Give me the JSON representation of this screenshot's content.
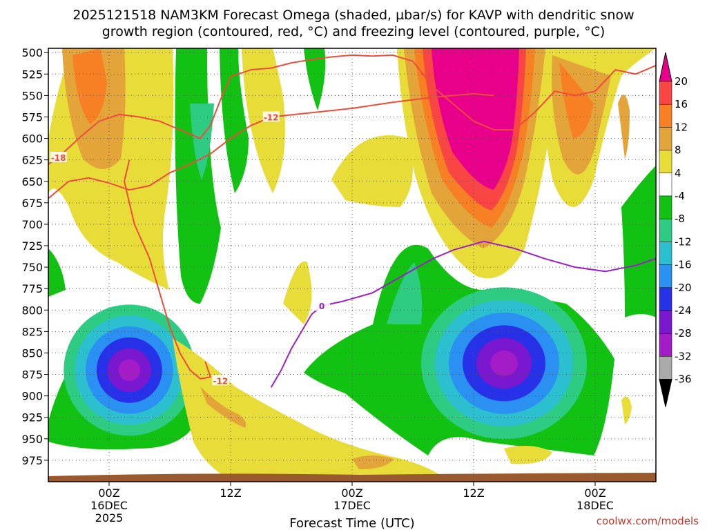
{
  "title_line1": "2025121518 NAM3KM Forecast Omega (shaded, µbar/s) for KAVP with dendritic snow",
  "title_line2": "growth region (contoured, red, °C) and freezing level (contoured, purple, °C)",
  "credit": "coolwx.com/models",
  "colors": {
    "frame": "#000000",
    "grid": "#aaaaaa",
    "ground": "#9b5a2e",
    "dgz": "#f04a3c",
    "freezing": "#9b1fc8"
  },
  "chart_data": {
    "type": "heatmap",
    "xlabel": "Forecast Time (UTC)",
    "x_ticks": [
      {
        "lines": [
          "00Z",
          "16DEC",
          "2025"
        ],
        "hours": 6
      },
      {
        "lines": [
          "12Z"
        ],
        "hours": 18
      },
      {
        "lines": [
          "00Z",
          "17DEC"
        ],
        "hours": 30
      },
      {
        "lines": [
          "12Z"
        ],
        "hours": 42
      },
      {
        "lines": [
          "00Z",
          "18DEC"
        ],
        "hours": 54
      }
    ],
    "xlim_hours": [
      0,
      60
    ],
    "y_ticks": [
      500,
      525,
      550,
      575,
      600,
      625,
      650,
      675,
      700,
      725,
      750,
      775,
      800,
      825,
      850,
      875,
      900,
      925,
      950,
      975
    ],
    "ylim": [
      1000,
      495
    ],
    "colorbar": {
      "labels": [
        "20",
        "16",
        "12",
        "8",
        "4",
        "-4",
        "-8",
        "-12",
        "-16",
        "-20",
        "-24",
        "-28",
        "-32",
        "-36"
      ],
      "bins": [
        {
          "color": "#e8008a"
        },
        {
          "color": "#fa4545"
        },
        {
          "color": "#f77f24"
        },
        {
          "color": "#e3a43a"
        },
        {
          "color": "#e8dd38"
        },
        {
          "color": "#ffffff"
        },
        {
          "color": "#12c212"
        },
        {
          "color": "#2ecc82"
        },
        {
          "color": "#2bbfcf"
        },
        {
          "color": "#2a90f2"
        },
        {
          "color": "#2631e8"
        },
        {
          "color": "#7a18d0"
        },
        {
          "color": "#a31cc8"
        },
        {
          "color": "#aaaaaa"
        },
        {
          "color": "#000000"
        }
      ]
    },
    "contours": [
      {
        "name": "dgz-minus-12",
        "label": "-12",
        "color": "#f04a3c",
        "points": [
          [
            0,
            670
          ],
          [
            2,
            650
          ],
          [
            4,
            646
          ],
          [
            6,
            652
          ],
          [
            8,
            660
          ],
          [
            10,
            655
          ],
          [
            12,
            640
          ],
          [
            14,
            630
          ],
          [
            16,
            618
          ],
          [
            18,
            600
          ],
          [
            20,
            585
          ],
          [
            22,
            575
          ],
          [
            26,
            570
          ],
          [
            30,
            565
          ],
          [
            34,
            558
          ],
          [
            38,
            552
          ],
          [
            40,
            550
          ],
          [
            42,
            548
          ],
          [
            44,
            550
          ]
        ],
        "label_at": [
          22,
          575
        ]
      },
      {
        "name": "dgz-minus-18",
        "label": "-18",
        "color": "#f04a3c",
        "points": [
          [
            0,
            630
          ],
          [
            1,
            622
          ],
          [
            3,
            600
          ],
          [
            5,
            580
          ],
          [
            7,
            572
          ],
          [
            9,
            575
          ],
          [
            11,
            580
          ],
          [
            13,
            590
          ],
          [
            15,
            600
          ],
          [
            16,
            585
          ],
          [
            17,
            555
          ],
          [
            18,
            528
          ],
          [
            20,
            520
          ],
          [
            22,
            518
          ],
          [
            24,
            512
          ],
          [
            26,
            508
          ],
          [
            28,
            505
          ],
          [
            30,
            503
          ],
          [
            32,
            504
          ],
          [
            34,
            503
          ],
          [
            36,
            510
          ],
          [
            38,
            540
          ],
          [
            40,
            560
          ],
          [
            42,
            580
          ],
          [
            44,
            590
          ],
          [
            46,
            590
          ],
          [
            48,
            570
          ],
          [
            50,
            545
          ],
          [
            52,
            550
          ],
          [
            54,
            545
          ],
          [
            56,
            520
          ],
          [
            58,
            525
          ],
          [
            60,
            515
          ]
        ],
        "label_at": [
          1,
          622
        ]
      },
      {
        "name": "dgz-lower",
        "label": "-12",
        "color": "#f04a3c",
        "points": [
          [
            8,
            625
          ],
          [
            7.5,
            650
          ],
          [
            8.5,
            700
          ],
          [
            10,
            740
          ],
          [
            11,
            780
          ],
          [
            12,
            820
          ],
          [
            13,
            850
          ],
          [
            14,
            870
          ],
          [
            15,
            880
          ],
          [
            16,
            878
          ],
          [
            15.5,
            860
          ]
        ],
        "label_at": [
          17,
          882
        ]
      },
      {
        "name": "freezing-level",
        "label": "0",
        "color": "#9b1fc8",
        "points": [
          [
            22,
            890
          ],
          [
            23,
            870
          ],
          [
            24,
            845
          ],
          [
            25,
            825
          ],
          [
            26,
            805
          ],
          [
            27,
            795
          ],
          [
            29,
            790
          ],
          [
            32,
            780
          ],
          [
            35,
            760
          ],
          [
            38,
            740
          ],
          [
            40,
            730
          ],
          [
            43,
            720
          ],
          [
            46,
            728
          ],
          [
            49,
            740
          ],
          [
            52,
            750
          ],
          [
            55,
            755
          ],
          [
            58,
            748
          ],
          [
            60,
            740
          ]
        ],
        "label_at": [
          27,
          795
        ]
      }
    ]
  }
}
